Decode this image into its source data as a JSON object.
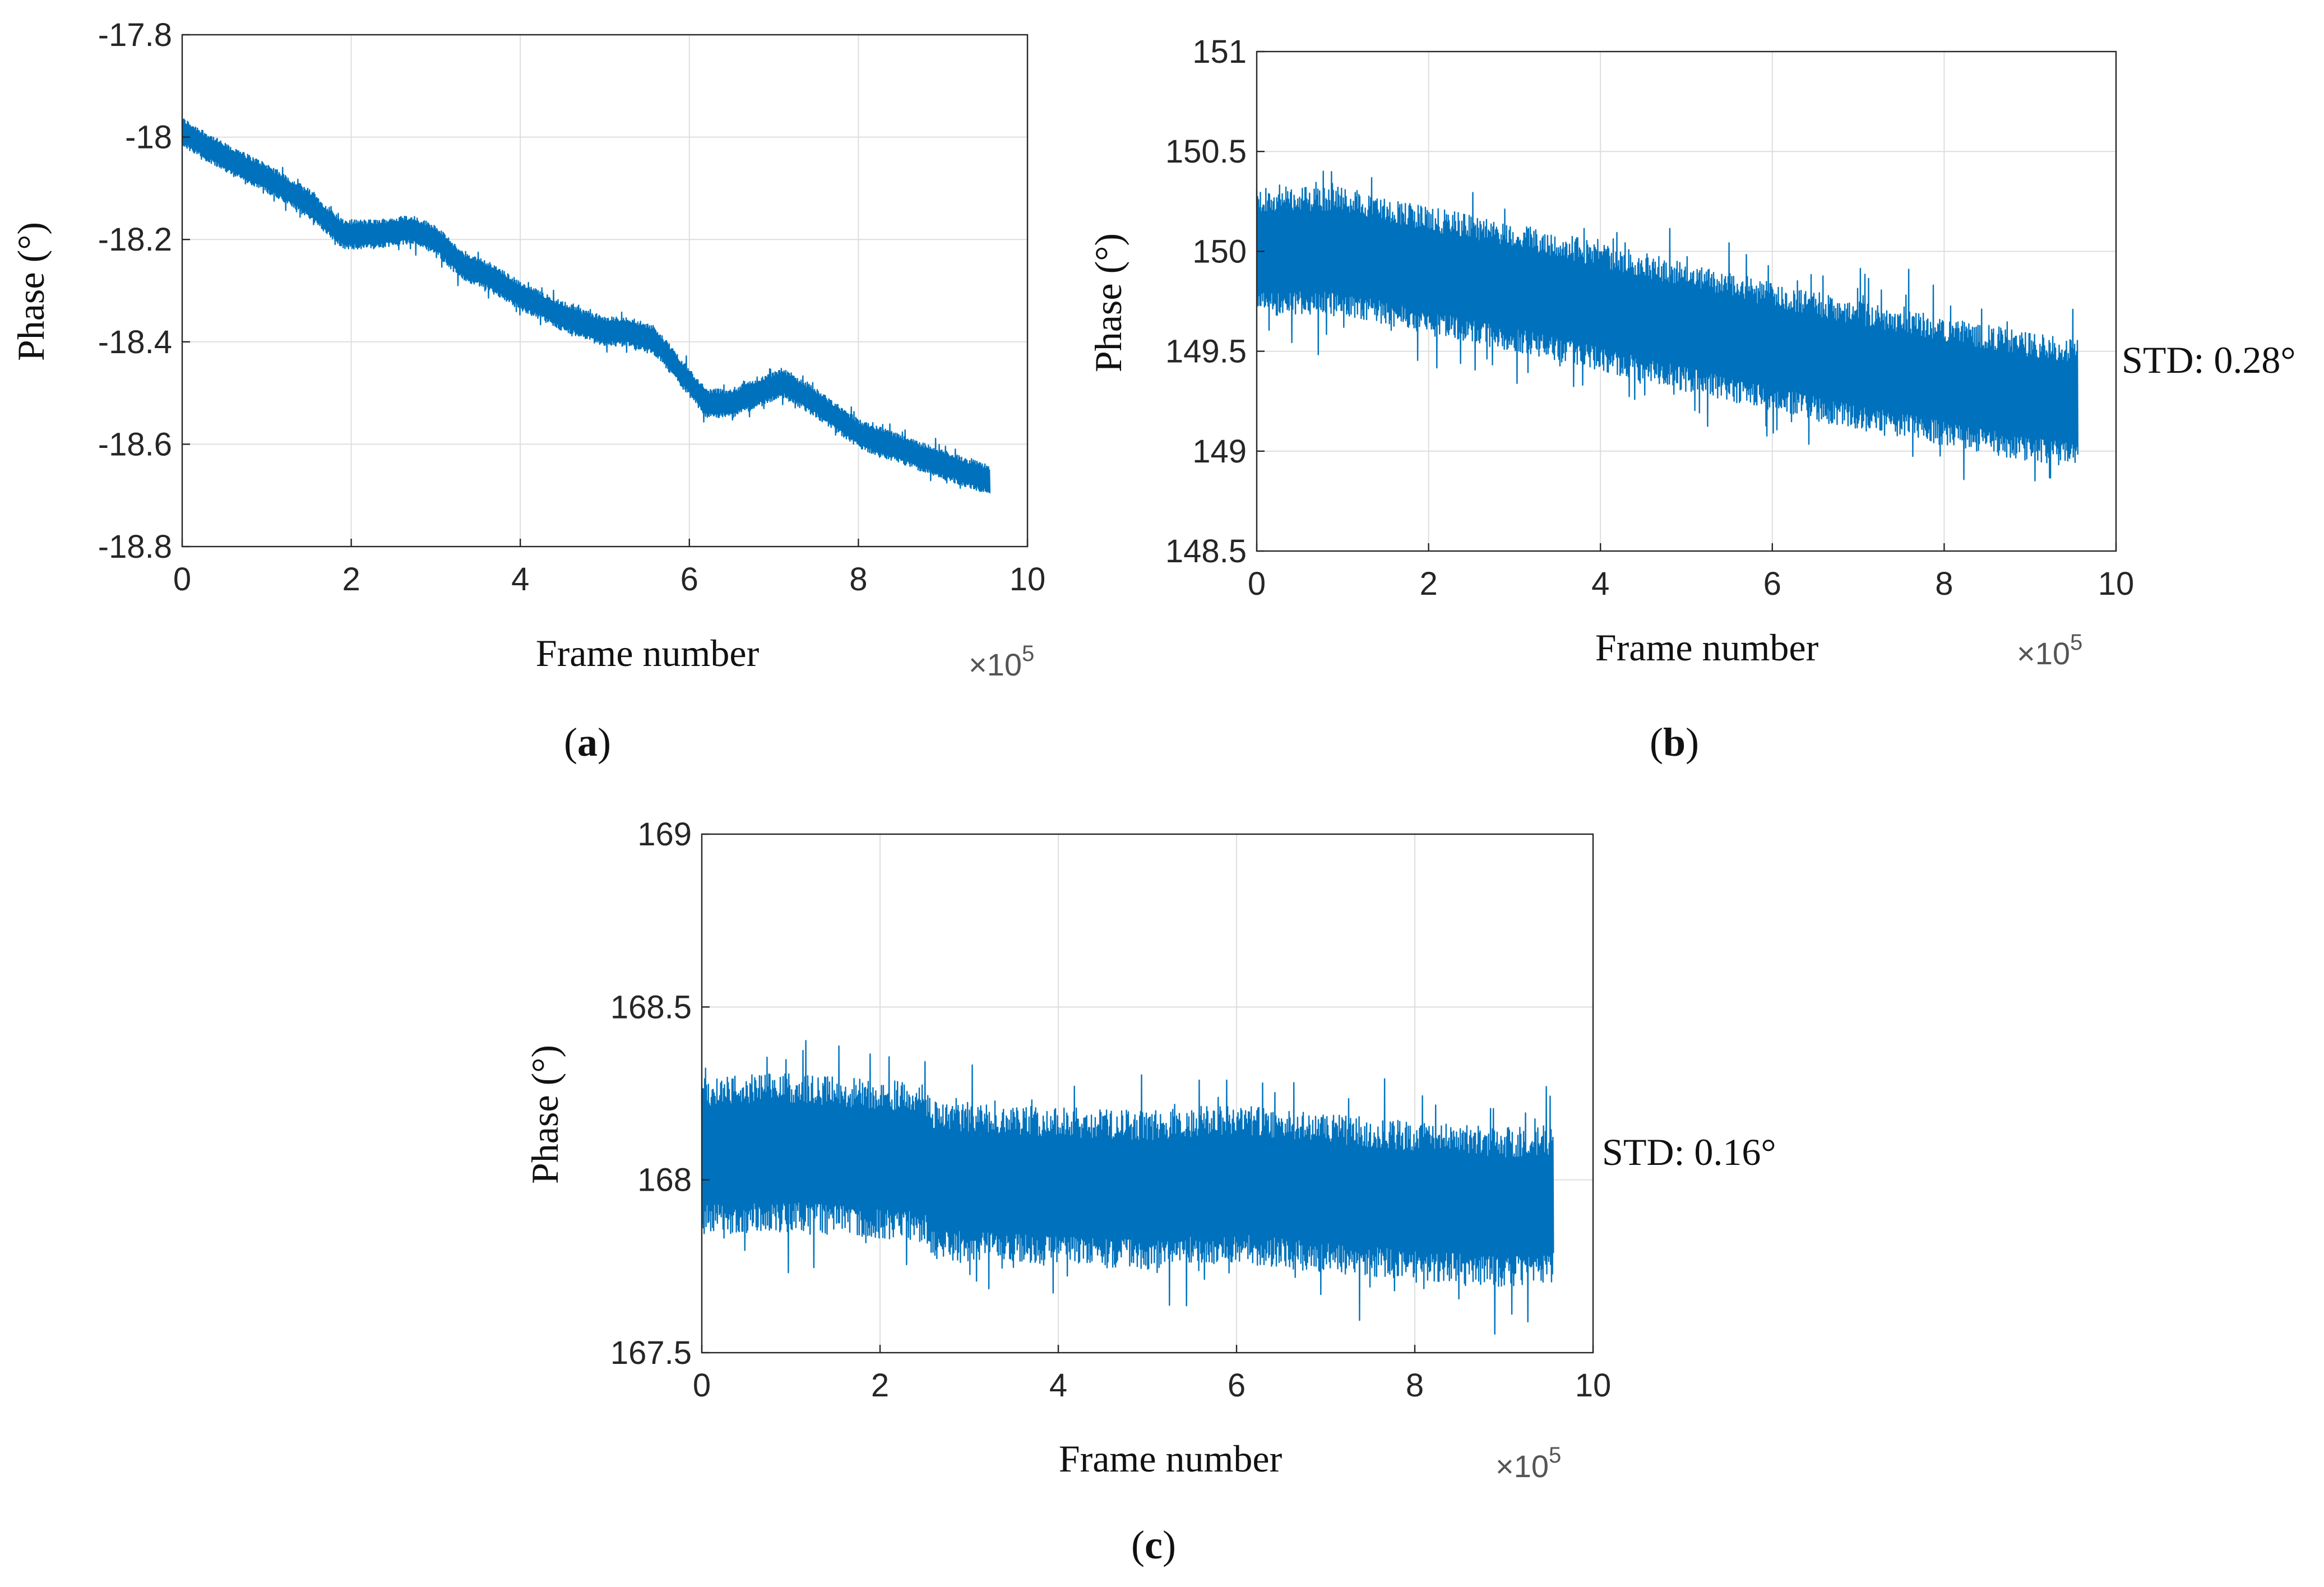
{
  "chart_data": [
    {
      "type": "line",
      "panel": "a",
      "title": "",
      "xlabel": "Frame number",
      "ylabel": "Phase (°)",
      "x_multiplier": {
        "base": "×10",
        "exp": "5"
      },
      "xlim": [
        0,
        10
      ],
      "ylim": [
        -18.8,
        -17.8
      ],
      "xticks": [
        0,
        2,
        4,
        6,
        8,
        10
      ],
      "yticks": [
        -18.8,
        -18.6,
        -18.4,
        -18.2,
        -18,
        -17.8
      ],
      "ytick_labels": [
        "-18.8",
        "-18.6",
        "-18.4",
        "-18.2",
        "-18",
        "-17.8"
      ],
      "grid": true,
      "color": "#0072BD",
      "x_end": 9.55,
      "series": [
        {
          "name": "phase",
          "x": [
            0,
            0.5,
            1,
            1.5,
            1.9,
            2.3,
            2.7,
            3.0,
            3.3,
            3.6,
            4.0,
            4.5,
            5.0,
            5.3,
            5.6,
            5.9,
            6.2,
            6.5,
            6.8,
            7.1,
            7.5,
            8.0,
            8.5,
            9.0,
            9.55
          ],
          "values": [
            -17.99,
            -18.04,
            -18.08,
            -18.13,
            -18.19,
            -18.19,
            -18.18,
            -18.2,
            -18.25,
            -18.27,
            -18.31,
            -18.35,
            -18.38,
            -18.38,
            -18.4,
            -18.46,
            -18.52,
            -18.52,
            -18.5,
            -18.48,
            -18.52,
            -18.58,
            -18.61,
            -18.64,
            -18.67
          ],
          "band_halfwidth": 0.025
        }
      ],
      "annotation": ""
    },
    {
      "type": "line",
      "panel": "b",
      "title": "",
      "xlabel": "Frame number",
      "ylabel": "Phase (°)",
      "x_multiplier": {
        "base": "×10",
        "exp": "5"
      },
      "xlim": [
        0,
        10
      ],
      "ylim": [
        148.5,
        151
      ],
      "xticks": [
        0,
        2,
        4,
        6,
        8,
        10
      ],
      "yticks": [
        148.5,
        149,
        149.5,
        150,
        150.5,
        151
      ],
      "ytick_labels": [
        "148.5",
        "149",
        "149.5",
        "150",
        "150.5",
        "151"
      ],
      "grid": true,
      "color": "#0072BD",
      "x_end": 9.55,
      "series": [
        {
          "name": "phase",
          "x": [
            0,
            1,
            2,
            3,
            4,
            5,
            6,
            7,
            8,
            9,
            9.55
          ],
          "values": [
            150.0,
            150.0,
            149.9,
            149.82,
            149.72,
            149.62,
            149.52,
            149.43,
            149.35,
            149.27,
            149.24
          ],
          "band_halfwidth": 0.28
        }
      ],
      "annotation": "STD: 0.28°"
    },
    {
      "type": "line",
      "panel": "c",
      "title": "",
      "xlabel": "Frame number",
      "ylabel": "Phase (°)",
      "x_multiplier": {
        "base": "×10",
        "exp": "5"
      },
      "xlim": [
        0,
        10
      ],
      "ylim": [
        167.5,
        169
      ],
      "xticks": [
        0,
        2,
        4,
        6,
        8,
        10
      ],
      "yticks": [
        167.5,
        168,
        168.5,
        169
      ],
      "ytick_labels": [
        "167.5",
        "168",
        "168.5",
        "169"
      ],
      "grid": true,
      "color": "#0072BD",
      "x_end": 9.55,
      "series": [
        {
          "name": "phase",
          "x": [
            0,
            1,
            2,
            2.5,
            2.6,
            4,
            5,
            6,
            7,
            8,
            9,
            9.55
          ],
          "values": [
            168.07,
            168.08,
            168.06,
            168.05,
            168.0,
            167.98,
            167.97,
            167.99,
            167.96,
            167.94,
            167.92,
            167.93
          ],
          "band_halfwidth": 0.2
        }
      ],
      "annotation": "STD: 0.16°"
    }
  ],
  "captions": [
    {
      "open": "(",
      "letter": "a",
      "close": ")"
    },
    {
      "open": "(",
      "letter": "b",
      "close": ")"
    },
    {
      "open": "(",
      "letter": "c",
      "close": ")"
    }
  ]
}
